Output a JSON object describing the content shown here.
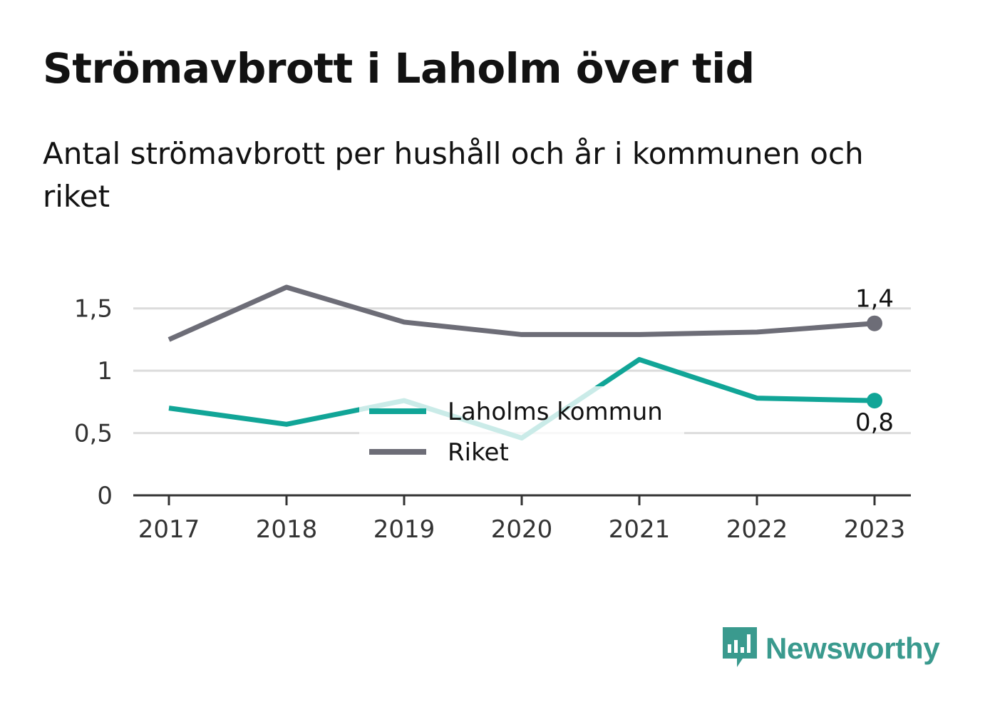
{
  "title": "Strömavbrott i Laholm över tid",
  "subtitle": "Antal strömavbrott per hushåll och år i kommunen och riket",
  "brand": {
    "name": "Newsworthy",
    "icon": "bar-chart-speech-bubble-icon",
    "color": "#3a9a8e"
  },
  "chart_data": {
    "type": "line",
    "x": [
      "2017",
      "2018",
      "2019",
      "2020",
      "2021",
      "2022",
      "2023"
    ],
    "yticks": [
      "0",
      "0,5",
      "1",
      "1,5"
    ],
    "ylim": [
      0,
      1.75
    ],
    "grid": true,
    "legend": "center",
    "series": [
      {
        "name": "Laholms kommun",
        "color": "#11a597",
        "values": [
          0.7,
          0.57,
          0.76,
          0.46,
          1.09,
          0.78,
          0.76
        ],
        "end_label": "0,8"
      },
      {
        "name": "Riket",
        "color": "#6d6d77",
        "values": [
          1.25,
          1.67,
          1.39,
          1.29,
          1.29,
          1.31,
          1.38
        ],
        "end_label": "1,4"
      }
    ]
  }
}
